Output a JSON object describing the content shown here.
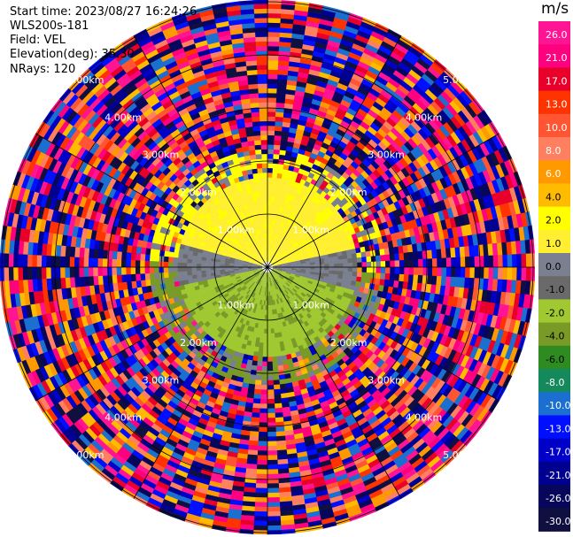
{
  "header": {
    "start_time": "Start time: 2023/08/27 16:24:26",
    "instrument": "WLS200s-181",
    "field": "Field: VEL",
    "elevation": "Elevation(deg): 35.30",
    "nrays": "NRays: 120"
  },
  "chart_data": {
    "type": "heatmap",
    "projection": "polar-ppi",
    "unit": "m/s",
    "range_rings": [
      {
        "label": "1.00km",
        "range_km": 1.0
      },
      {
        "label": "2.00km",
        "range_km": 2.0
      },
      {
        "label": "3.00km",
        "range_km": 3.0
      },
      {
        "label": "4.00km",
        "range_km": 4.0
      },
      {
        "label": "5.00km",
        "range_km": 5.0
      }
    ],
    "max_range_km": 5.0,
    "spoke_angles_deg": [
      0,
      30,
      60,
      90,
      120,
      150,
      180,
      210,
      240,
      270,
      300,
      330
    ],
    "colorbar": {
      "labels": [
        "26.0",
        "21.0",
        "17.0",
        "13.0",
        "10.0",
        "8.0",
        "6.0",
        "4.0",
        "2.0",
        "1.0",
        "0.0",
        "-1.0",
        "-2.0",
        "-4.0",
        "-6.0",
        "-8.0",
        "-10.0",
        "-13.0",
        "-17.0",
        "-21.0",
        "-26.0",
        "-30.0"
      ],
      "colors": [
        "#ff1493",
        "#ff007f",
        "#e8002a",
        "#ff3300",
        "#ff5533",
        "#ff8060",
        "#ff9900",
        "#ffbb00",
        "#ffff00",
        "#ffef30",
        "#7a8090",
        "#6a6a6a",
        "#a0c830",
        "#7a9a28",
        "#2e8b22",
        "#148a5c",
        "#1a6fd0",
        "#0010ff",
        "#0000c8",
        "#000090",
        "#06065a",
        "#101040"
      ]
    }
  }
}
